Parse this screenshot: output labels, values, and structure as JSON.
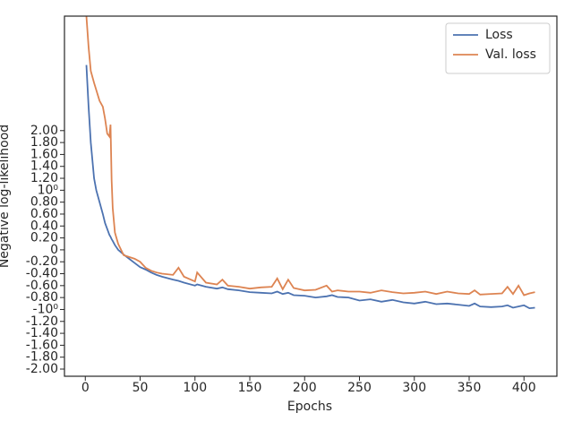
{
  "chart_data": {
    "type": "line",
    "xlabel": "Epochs",
    "ylabel": "Negative log-likelihood",
    "x": [
      1,
      3,
      5,
      8,
      10,
      13,
      16,
      18,
      20,
      22,
      23,
      24,
      25,
      27,
      30,
      35,
      40,
      45,
      50,
      55,
      60,
      65,
      70,
      80,
      85,
      90,
      100,
      102,
      110,
      120,
      125,
      130,
      140,
      150,
      160,
      170,
      175,
      180,
      185,
      190,
      200,
      210,
      220,
      225,
      230,
      240,
      250,
      260,
      270,
      280,
      290,
      300,
      310,
      320,
      330,
      340,
      350,
      355,
      360,
      370,
      380,
      385,
      390,
      395,
      400,
      405,
      410
    ],
    "series": [
      {
        "name": "Loss",
        "color": "#4c72b0",
        "values": [
          3.1,
          2.4,
          1.8,
          1.2,
          1.0,
          0.8,
          0.6,
          0.45,
          0.35,
          0.25,
          0.22,
          0.18,
          0.15,
          0.08,
          0.0,
          -0.08,
          -0.15,
          -0.22,
          -0.29,
          -0.33,
          -0.38,
          -0.42,
          -0.45,
          -0.5,
          -0.52,
          -0.55,
          -0.6,
          -0.58,
          -0.62,
          -0.65,
          -0.63,
          -0.66,
          -0.68,
          -0.71,
          -0.72,
          -0.73,
          -0.7,
          -0.74,
          -0.72,
          -0.76,
          -0.77,
          -0.8,
          -0.78,
          -0.76,
          -0.79,
          -0.8,
          -0.85,
          -0.83,
          -0.87,
          -0.84,
          -0.88,
          -0.9,
          -0.87,
          -0.91,
          -0.9,
          -0.92,
          -0.94,
          -0.9,
          -0.95,
          -0.96,
          -0.95,
          -0.93,
          -0.97,
          -0.95,
          -0.93,
          -0.98,
          -0.97
        ]
      },
      {
        "name": "Val. loss",
        "color": "#dd8452",
        "values": [
          3.92,
          3.4,
          3.0,
          2.8,
          2.68,
          2.5,
          2.4,
          2.2,
          1.95,
          1.9,
          2.1,
          1.17,
          0.7,
          0.29,
          0.1,
          -0.09,
          -0.12,
          -0.15,
          -0.2,
          -0.3,
          -0.35,
          -0.38,
          -0.4,
          -0.42,
          -0.3,
          -0.45,
          -0.53,
          -0.38,
          -0.55,
          -0.58,
          -0.5,
          -0.6,
          -0.62,
          -0.65,
          -0.63,
          -0.62,
          -0.48,
          -0.66,
          -0.5,
          -0.64,
          -0.68,
          -0.67,
          -0.6,
          -0.7,
          -0.68,
          -0.7,
          -0.7,
          -0.72,
          -0.68,
          -0.71,
          -0.73,
          -0.72,
          -0.7,
          -0.74,
          -0.7,
          -0.73,
          -0.74,
          -0.68,
          -0.75,
          -0.74,
          -0.73,
          -0.62,
          -0.74,
          -0.6,
          -0.76,
          -0.73,
          -0.71
        ]
      }
    ],
    "xlim": [
      -19,
      430
    ],
    "xticks": [
      0,
      50,
      100,
      150,
      200,
      250,
      300,
      350,
      400
    ],
    "ylim": [
      -2.12,
      3.92
    ],
    "yticks": [
      {
        "value": -2,
        "label": "-2.00"
      },
      {
        "value": -1.8,
        "label": "-1.80"
      },
      {
        "value": -1.6,
        "label": "-1.60"
      },
      {
        "value": -1.4,
        "label": "-1.40"
      },
      {
        "value": -1.2,
        "label": "-1.20"
      },
      {
        "value": -1,
        "label": "-10⁰"
      },
      {
        "value": -0.8,
        "label": "-0.80"
      },
      {
        "value": -0.6,
        "label": "-0.60"
      },
      {
        "value": -0.4,
        "label": "-0.40"
      },
      {
        "value": -0.2,
        "label": "-0.20"
      },
      0,
      {
        "value": 0.2,
        "label": "0.20"
      },
      {
        "value": 0.4,
        "label": "0.40"
      },
      {
        "value": 0.6,
        "label": "0.60"
      },
      {
        "value": 0.8,
        "label": "0.80"
      },
      {
        "value": 1,
        "label": "10⁰"
      },
      {
        "value": 1.2,
        "label": "1.20"
      },
      {
        "value": 1.4,
        "label": "1.40"
      },
      {
        "value": 1.6,
        "label": "1.60"
      },
      {
        "value": 1.8,
        "label": "1.80"
      },
      {
        "value": 2,
        "label": "2.00"
      }
    ],
    "legend": "upper right"
  }
}
